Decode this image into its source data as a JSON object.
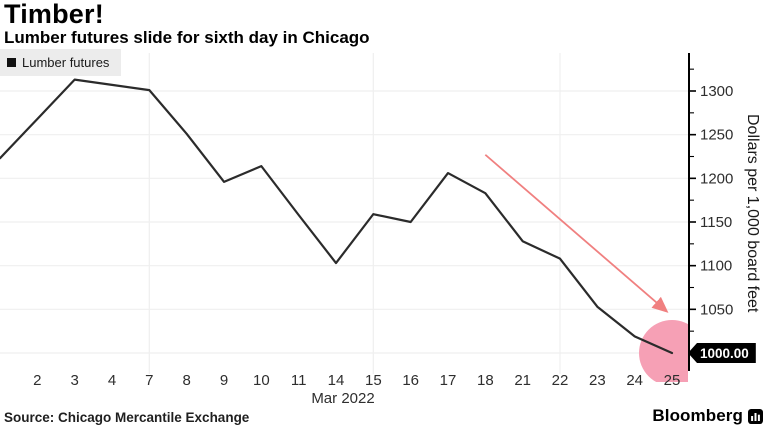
{
  "header": {
    "title": "Timber!",
    "subtitle": "Lumber futures slide for sixth day in Chicago"
  },
  "legend": {
    "label": "Lumber futures",
    "marker": "black-square"
  },
  "source": {
    "text": "Source: Chicago Mercantile Exchange"
  },
  "branding": {
    "name": "Bloomberg",
    "icon": "bloomberg-mark-icon"
  },
  "colors": {
    "line": "#2b2b2b",
    "grid": "#efefef",
    "axis": "#000000",
    "tick_text": "#2e2e2e",
    "arrow": "#f08080",
    "highlight_fill": "#f6a0b5",
    "tag_bg": "#000000",
    "tag_text": "#ffffff",
    "legend_bg": "#ececec"
  },
  "chart_data": {
    "type": "line",
    "series_name": "Lumber futures",
    "dates": [
      "Mar 1",
      "Mar 2",
      "Mar 3",
      "Mar 4",
      "Mar 7",
      "Mar 8",
      "Mar 9",
      "Mar 10",
      "Mar 11",
      "Mar 14",
      "Mar 15",
      "Mar 16",
      "Mar 17",
      "Mar 18",
      "Mar 21",
      "Mar 22",
      "Mar 23",
      "Mar 24",
      "Mar 25"
    ],
    "x_tick_labels": [
      "",
      "2",
      "3",
      "4",
      "7",
      "8",
      "9",
      "10",
      "11",
      "14",
      "15",
      "16",
      "17",
      "18",
      "21",
      "22",
      "23",
      "24",
      "25"
    ],
    "values": [
      1223,
      1268,
      1313,
      1307,
      1301,
      1251,
      1196,
      1214,
      1158,
      1103,
      1159,
      1150,
      1206,
      1183,
      1128,
      1108,
      1053,
      1019,
      1000
    ],
    "x_axis_label": "Mar 2022",
    "y_axis_label": "Dollars per 1,000 board feet",
    "y_ticks_labeled": [
      1050,
      1100,
      1150,
      1200,
      1250,
      1300
    ],
    "y_major_step": 50,
    "y_minor_step": 25,
    "ylim": [
      975,
      1340
    ],
    "grid_on": true,
    "grid": {
      "horizontal": [
        1000,
        1050,
        1100,
        1150,
        1200,
        1250,
        1300
      ],
      "vertical_at_dates": [
        "Mar 7",
        "Mar 15",
        "Mar 22"
      ]
    },
    "legend_position": "top-left",
    "last_value_label": "1000.00",
    "annotations": {
      "arrow": {
        "from_index": 13.0,
        "from_value": 1227,
        "to_index": 17.85,
        "to_value": 1048
      },
      "highlight_circle": {
        "index": 18,
        "value": 1000,
        "radius_px": 33
      }
    }
  }
}
